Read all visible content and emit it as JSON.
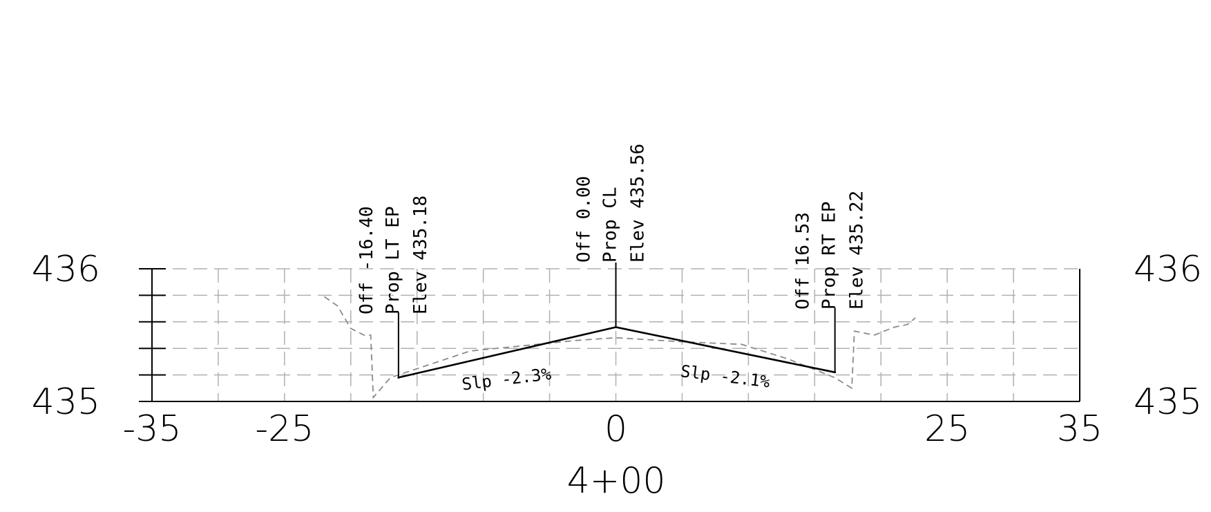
{
  "station_label": "4+00",
  "x_axis": {
    "range": [
      -35,
      35
    ],
    "grid_step": 5,
    "tick_labels": [
      {
        "value": -35,
        "text": "-35"
      },
      {
        "value": -25,
        "text": "-25"
      },
      {
        "value": 0,
        "text": "0"
      },
      {
        "value": 25,
        "text": "25"
      },
      {
        "value": 35,
        "text": "35"
      }
    ]
  },
  "y_axis": {
    "range": [
      435.0,
      436.0
    ],
    "grid_step": 0.2,
    "tick_labels": [
      {
        "value": 436,
        "text": "436"
      },
      {
        "value": 435,
        "text": "435"
      }
    ]
  },
  "colors": {
    "grid": "#b0b0b0",
    "existing_ground": "#8a8a8a",
    "proposed": "#000000"
  },
  "chart_data": {
    "type": "line",
    "proposed_section": [
      {
        "x": -16.4,
        "y": 435.18
      },
      {
        "x": 0.0,
        "y": 435.56
      },
      {
        "x": 16.53,
        "y": 435.22
      }
    ],
    "existing_ground": [
      {
        "x": -22.0,
        "y": 435.79
      },
      {
        "x": -21.0,
        "y": 435.72
      },
      {
        "x": -20.0,
        "y": 435.55
      },
      {
        "x": -19.0,
        "y": 435.5
      },
      {
        "x": -18.5,
        "y": 435.5
      },
      {
        "x": -18.3,
        "y": 435.03
      },
      {
        "x": -17.0,
        "y": 435.18
      },
      {
        "x": -14.0,
        "y": 435.28
      },
      {
        "x": -11.0,
        "y": 435.38
      },
      {
        "x": -7.0,
        "y": 435.42
      },
      {
        "x": -3.0,
        "y": 435.46
      },
      {
        "x": 0.0,
        "y": 435.48
      },
      {
        "x": 5.0,
        "y": 435.45
      },
      {
        "x": 9.5,
        "y": 435.43
      },
      {
        "x": 13.0,
        "y": 435.32
      },
      {
        "x": 16.5,
        "y": 435.18
      },
      {
        "x": 17.8,
        "y": 435.1
      },
      {
        "x": 18.0,
        "y": 435.53
      },
      {
        "x": 19.5,
        "y": 435.5
      },
      {
        "x": 21.0,
        "y": 435.56
      },
      {
        "x": 22.0,
        "y": 435.58
      },
      {
        "x": 22.6,
        "y": 435.63
      }
    ],
    "annotations": [
      {
        "x": -16.4,
        "y": 435.18,
        "lines": [
          "Off -16.40",
          "Prop LT EP",
          "Elev 435.18"
        ]
      },
      {
        "x": 0.0,
        "y": 435.56,
        "lines": [
          "Off 0.00",
          "Prop CL",
          "Elev 435.56"
        ]
      },
      {
        "x": 16.53,
        "y": 435.22,
        "lines": [
          "Off 16.53",
          "Prop RT EP",
          "Elev 435.22"
        ]
      }
    ],
    "slopes": [
      {
        "text": "Slp -2.3%",
        "x": -8.2,
        "y": 435.22
      },
      {
        "text": "Slp -2.1%",
        "x": 8.2,
        "y": 435.24
      }
    ]
  }
}
